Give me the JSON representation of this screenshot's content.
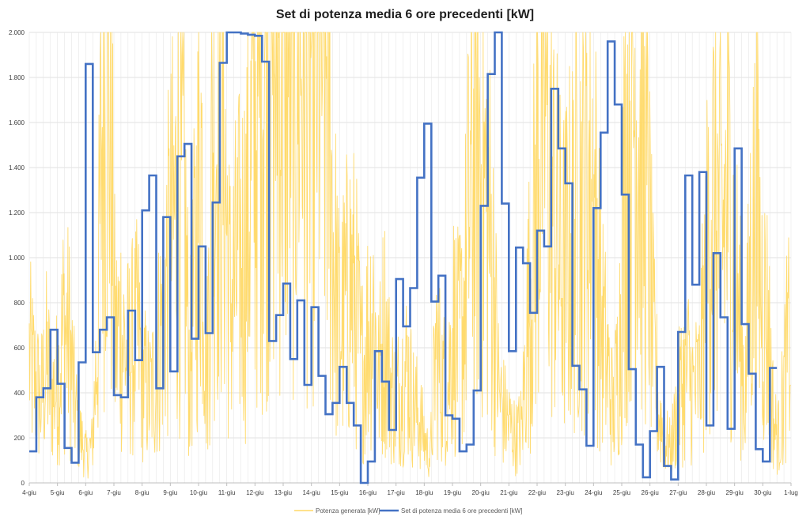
{
  "chart_data": {
    "type": "line",
    "title": "Set di potenza media 6 ore precedenti [kW]",
    "xlabel": "",
    "ylabel": "",
    "ylim": [
      0,
      2000
    ],
    "y_ticks": [
      0,
      200,
      400,
      600,
      800,
      1000,
      1200,
      1400,
      1600,
      1800,
      2000
    ],
    "y_tick_labels": [
      "0",
      "200",
      "400",
      "600",
      "800",
      "1.000",
      "1.200",
      "1.400",
      "1.600",
      "1.800",
      "2.000"
    ],
    "x_tick_labels": [
      "4-giu",
      "5-giu",
      "6-giu",
      "7-giu",
      "8-giu",
      "9-giu",
      "10-giu",
      "11-giu",
      "12-giu",
      "13-giu",
      "14-giu",
      "15-giu",
      "16-giu",
      "17-giu",
      "18-giu",
      "19-giu",
      "20-giu",
      "21-giu",
      "22-giu",
      "23-giu",
      "24-giu",
      "25-giu",
      "26-giu",
      "27-giu",
      "28-giu",
      "29-giu",
      "30-giu",
      "1-lug"
    ],
    "x_unit": "days from 4-giu",
    "grid": true,
    "legend_position": "bottom",
    "series": [
      {
        "name": "Potenza generata [kW]",
        "color": "#FFD966",
        "style": "thin-line",
        "note": "noisy hourly measurement; envelope values sampled every 6 hours",
        "values": [
          560,
          450,
          360,
          520,
          400,
          430,
          700,
          620,
          330,
          200,
          120,
          170,
          700,
          1950,
          1700,
          620,
          700,
          550,
          600,
          650,
          450,
          380,
          470,
          700,
          900,
          1100,
          1250,
          1250,
          460,
          1000,
          1500,
          450,
          1500,
          1650,
          1500,
          800,
          900,
          1000,
          1100,
          1500,
          1700,
          2000,
          2000,
          2000,
          2000,
          2000,
          2000,
          2000,
          2000,
          2000,
          2000,
          2000,
          1900,
          1100,
          700,
          750,
          900,
          800,
          500,
          650,
          800,
          450,
          700,
          450,
          350,
          450,
          500,
          350,
          300,
          200,
          100,
          600,
          450,
          400,
          700,
          600,
          800,
          1300,
          1500,
          1400,
          1200,
          900,
          400,
          300,
          250,
          200,
          250,
          700,
          1000,
          1500,
          1900,
          1300,
          1100,
          900,
          1000,
          1100,
          1200,
          1300,
          1400,
          1100,
          700,
          500,
          300,
          600,
          1300,
          1800,
          1700,
          1400,
          1200,
          600,
          300,
          200,
          150,
          300,
          450,
          500,
          400,
          450,
          800,
          1300,
          1200,
          1100,
          1300,
          1000,
          700,
          400,
          1000,
          1200,
          800,
          700,
          250,
          200,
          500,
          700
        ]
      },
      {
        "name": "Set di potenza media 6 ore precedenti [kW]",
        "color": "#4472C4",
        "style": "step",
        "step_hours": 6,
        "values": [
          140,
          380,
          420,
          680,
          440,
          155,
          90,
          535,
          1860,
          580,
          680,
          735,
          390,
          380,
          765,
          545,
          1210,
          1365,
          420,
          1180,
          495,
          1450,
          1505,
          640,
          1050,
          665,
          1245,
          1865,
          2000,
          2000,
          1995,
          1990,
          1985,
          1870,
          630,
          745,
          885,
          550,
          810,
          435,
          780,
          475,
          305,
          355,
          515,
          355,
          255,
          0,
          95,
          585,
          450,
          235,
          905,
          695,
          865,
          1355,
          1595,
          805,
          920,
          300,
          285,
          140,
          170,
          410,
          1230,
          1815,
          2000,
          1240,
          585,
          1045,
          975,
          755,
          1120,
          1050,
          1750,
          1485,
          1330,
          520,
          415,
          165,
          1220,
          1555,
          1960,
          1680,
          1280,
          505,
          170,
          25,
          230,
          515,
          75,
          15,
          670,
          1365,
          880,
          1380,
          255,
          1020,
          735,
          240,
          1485,
          705,
          485,
          150,
          95,
          510
        ]
      }
    ]
  }
}
